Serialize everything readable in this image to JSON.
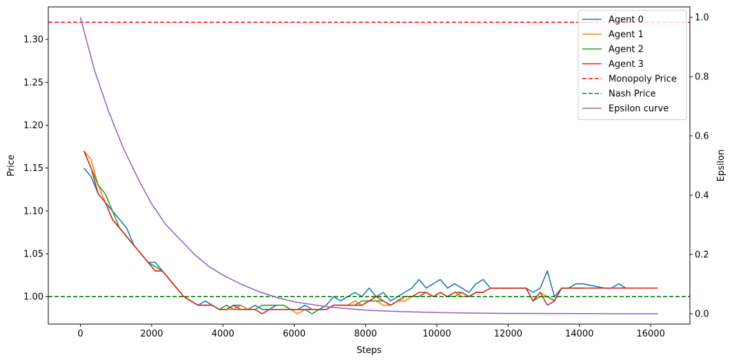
{
  "chart_data": {
    "type": "line",
    "title": "",
    "xlabel": "Steps",
    "ylabel": "Price",
    "y2label": "Epsilon",
    "xlim": [
      -900,
      17100
    ],
    "ylim": [
      0.968,
      1.338
    ],
    "y2lim": [
      -0.035,
      1.035
    ],
    "x_ticks": [
      0,
      2000,
      4000,
      6000,
      8000,
      10000,
      12000,
      14000,
      16000
    ],
    "y_ticks": [
      1.0,
      1.05,
      1.1,
      1.15,
      1.2,
      1.25,
      1.3
    ],
    "y_tick_labels": [
      "1.00",
      "1.05",
      "1.10",
      "1.15",
      "1.20",
      "1.25",
      "1.30"
    ],
    "y2_ticks": [
      0.0,
      0.2,
      0.4,
      0.6,
      0.8,
      1.0
    ],
    "y2_tick_labels": [
      "0.0",
      "0.2",
      "0.4",
      "0.6",
      "0.8",
      "1.0"
    ],
    "grid": false,
    "legend_position": "top-right",
    "series": [
      {
        "name": "Agent 0",
        "color": "#1f77b4",
        "axis": "left",
        "style": "solid",
        "x": [
          100,
          300,
          500,
          700,
          900,
          1100,
          1300,
          1500,
          1700,
          1900,
          2100,
          2300,
          2500,
          2700,
          2900,
          3100,
          3300,
          3500,
          3700,
          3900,
          4100,
          4300,
          4500,
          4700,
          4900,
          5100,
          5300,
          5500,
          5700,
          5900,
          6100,
          6300,
          6500,
          6700,
          6900,
          7100,
          7300,
          7500,
          7700,
          7900,
          8100,
          8300,
          8500,
          8700,
          8900,
          9100,
          9300,
          9500,
          9700,
          9900,
          10100,
          10300,
          10500,
          10700,
          10900,
          11100,
          11300,
          11500,
          11700,
          11900,
          12100,
          12300,
          12500,
          12700,
          12900,
          13100,
          13300,
          13500,
          13700,
          13900,
          14100,
          14700,
          14900,
          15100,
          15300
        ],
        "y": [
          1.15,
          1.14,
          1.12,
          1.11,
          1.1,
          1.09,
          1.08,
          1.06,
          1.05,
          1.04,
          1.04,
          1.03,
          1.02,
          1.01,
          1.0,
          0.995,
          0.99,
          0.995,
          0.99,
          0.985,
          0.985,
          0.99,
          0.99,
          0.985,
          0.99,
          0.985,
          0.985,
          0.99,
          0.99,
          0.985,
          0.985,
          0.99,
          0.985,
          0.985,
          0.99,
          1.0,
          0.995,
          1.0,
          1.005,
          1.0,
          1.01,
          1.0,
          1.005,
          0.995,
          1.0,
          1.005,
          1.01,
          1.02,
          1.01,
          1.015,
          1.02,
          1.01,
          1.015,
          1.01,
          1.005,
          1.015,
          1.02,
          1.01,
          1.01,
          1.01,
          1.01,
          1.01,
          1.01,
          1.005,
          1.01,
          1.03,
          1.0,
          1.01,
          1.01,
          1.015,
          1.015,
          1.01,
          1.01,
          1.015,
          1.01
        ]
      },
      {
        "name": "Agent 1",
        "color": "#ff7f0e",
        "axis": "left",
        "style": "solid",
        "x": [
          100,
          300,
          500,
          700,
          900,
          1100,
          1300,
          1500,
          1700,
          1900,
          2100,
          2300,
          2500,
          2700,
          2900,
          3100,
          3300,
          3500,
          3700,
          3900,
          4100,
          4300,
          4500,
          4700,
          4900,
          5100,
          5300,
          5500,
          5700,
          5900,
          6100,
          6300,
          6500,
          6700,
          6900,
          7100,
          7300,
          7500,
          7700,
          7900,
          8100,
          8300,
          8500,
          8700,
          8900,
          9100,
          9300,
          9500,
          9700,
          9900,
          10100,
          10300,
          10500,
          10700,
          10900,
          11100,
          11300,
          11500,
          11700,
          11900,
          12100,
          12300,
          12500,
          12700,
          12900,
          13100,
          13300,
          13500,
          13700,
          13900,
          14100
        ],
        "y": [
          1.17,
          1.16,
          1.13,
          1.11,
          1.09,
          1.08,
          1.07,
          1.06,
          1.05,
          1.04,
          1.03,
          1.03,
          1.02,
          1.01,
          1.0,
          0.995,
          0.99,
          0.99,
          0.99,
          0.985,
          0.985,
          0.985,
          0.99,
          0.985,
          0.985,
          0.98,
          0.985,
          0.985,
          0.985,
          0.985,
          0.98,
          0.985,
          0.985,
          0.985,
          0.985,
          0.99,
          0.99,
          0.99,
          0.995,
          0.99,
          0.995,
          0.995,
          0.99,
          0.99,
          0.995,
          0.995,
          1.0,
          1.0,
          1.005,
          1.0,
          1.005,
          1.0,
          1.005,
          1.0,
          1.0,
          1.005,
          1.005,
          1.01,
          1.01,
          1.01,
          1.01,
          1.01,
          1.01,
          0.995,
          1.005,
          1.0,
          0.995,
          1.01,
          1.01,
          1.01,
          1.01
        ]
      },
      {
        "name": "Agent 2",
        "color": "#2ca02c",
        "axis": "left",
        "style": "solid",
        "x": [
          100,
          300,
          500,
          700,
          900,
          1100,
          1300,
          1500,
          1700,
          1900,
          2100,
          2300,
          2500,
          2700,
          2900,
          3100,
          3300,
          3500,
          3700,
          3900,
          4100,
          4300,
          4500,
          4700,
          4900,
          5100,
          5300,
          5500,
          5700,
          5900,
          6100,
          6300,
          6500,
          6700,
          6900,
          7100,
          7300,
          7500,
          7700,
          7900,
          8100,
          8300,
          8500,
          8700,
          8900,
          9100,
          9300,
          9500,
          9700,
          9900,
          10100,
          10300,
          10500,
          10700,
          10900,
          11100,
          11300,
          11500,
          11700,
          11900,
          12100,
          12300,
          12500,
          12700,
          12900,
          13100,
          13300,
          13500,
          13700,
          13900,
          14100
        ],
        "y": [
          1.17,
          1.15,
          1.13,
          1.12,
          1.1,
          1.08,
          1.07,
          1.06,
          1.05,
          1.04,
          1.035,
          1.03,
          1.02,
          1.01,
          1.0,
          0.995,
          0.99,
          0.99,
          0.99,
          0.985,
          0.99,
          0.985,
          0.985,
          0.985,
          0.985,
          0.99,
          0.99,
          0.99,
          0.99,
          0.985,
          0.985,
          0.985,
          0.98,
          0.985,
          0.985,
          0.99,
          0.99,
          0.99,
          0.99,
          0.995,
          0.995,
          0.995,
          0.995,
          0.99,
          0.995,
          1.0,
          1.0,
          1.0,
          1.005,
          1.0,
          1.005,
          1.0,
          1.0,
          1.005,
          1.0,
          1.005,
          1.005,
          1.01,
          1.01,
          1.01,
          1.01,
          1.01,
          1.01,
          0.995,
          1.0,
          1.0,
          0.995,
          1.01,
          1.01,
          1.01,
          1.01
        ]
      },
      {
        "name": "Agent 3",
        "color": "#d62728",
        "axis": "left",
        "style": "solid",
        "x": [
          100,
          300,
          500,
          700,
          900,
          1100,
          1300,
          1500,
          1700,
          1900,
          2100,
          2300,
          2500,
          2700,
          2900,
          3100,
          3300,
          3500,
          3700,
          3900,
          4100,
          4300,
          4500,
          4700,
          4900,
          5100,
          5300,
          5500,
          5700,
          5900,
          6100,
          6300,
          6500,
          6700,
          6900,
          7100,
          7300,
          7500,
          7700,
          7900,
          8100,
          8300,
          8500,
          8700,
          8900,
          9100,
          9300,
          9500,
          9700,
          9900,
          10100,
          10300,
          10500,
          10700,
          10900,
          11100,
          11300,
          11500,
          11700,
          11900,
          12100,
          12300,
          12500,
          12700,
          12900,
          13100,
          13300,
          13500,
          13700,
          13900,
          14100,
          14300,
          14500,
          14700,
          14900,
          15100,
          15300,
          15500,
          15700,
          15900,
          16200
        ],
        "y": [
          1.17,
          1.15,
          1.12,
          1.11,
          1.09,
          1.08,
          1.07,
          1.06,
          1.05,
          1.04,
          1.03,
          1.03,
          1.02,
          1.01,
          1.0,
          0.995,
          0.99,
          0.99,
          0.99,
          0.985,
          0.985,
          0.99,
          0.985,
          0.985,
          0.985,
          0.98,
          0.985,
          0.985,
          0.985,
          0.985,
          0.985,
          0.985,
          0.985,
          0.985,
          0.985,
          0.99,
          0.99,
          0.99,
          0.99,
          0.99,
          0.995,
          1.0,
          0.995,
          0.99,
          0.995,
          1.0,
          1.0,
          1.005,
          1.005,
          1.0,
          1.005,
          1.0,
          1.005,
          1.005,
          1.0,
          1.005,
          1.005,
          1.01,
          1.01,
          1.01,
          1.01,
          1.01,
          1.01,
          0.995,
          1.005,
          0.99,
          0.995,
          1.01,
          1.01,
          1.01,
          1.01,
          1.01,
          1.01,
          1.01,
          1.01,
          1.01,
          1.01,
          1.01,
          1.01,
          1.01,
          1.01
        ]
      },
      {
        "name": "Monopoly Price",
        "color": "#ff0000",
        "axis": "left",
        "style": "dashed",
        "value": 1.32
      },
      {
        "name": "Nash Price",
        "color": "#008000",
        "axis": "left",
        "style": "dashed",
        "value": 1.0
      },
      {
        "name": "Epsilon curve",
        "color": "#9467bd",
        "axis": "right",
        "style": "solid",
        "x": [
          0,
          400,
          800,
          1200,
          1600,
          2000,
          2400,
          2800,
          3200,
          3600,
          4000,
          4500,
          5000,
          5500,
          6000,
          7000,
          8000,
          9000,
          10000,
          11000,
          12000,
          13000,
          14000,
          15000,
          16200
        ],
        "y": [
          1.0,
          0.82,
          0.68,
          0.56,
          0.46,
          0.37,
          0.3,
          0.25,
          0.2,
          0.16,
          0.13,
          0.1,
          0.075,
          0.055,
          0.04,
          0.022,
          0.012,
          0.007,
          0.004,
          0.002,
          0.001,
          0.0006,
          0.0003,
          0.0001,
          0.0
        ]
      }
    ]
  }
}
